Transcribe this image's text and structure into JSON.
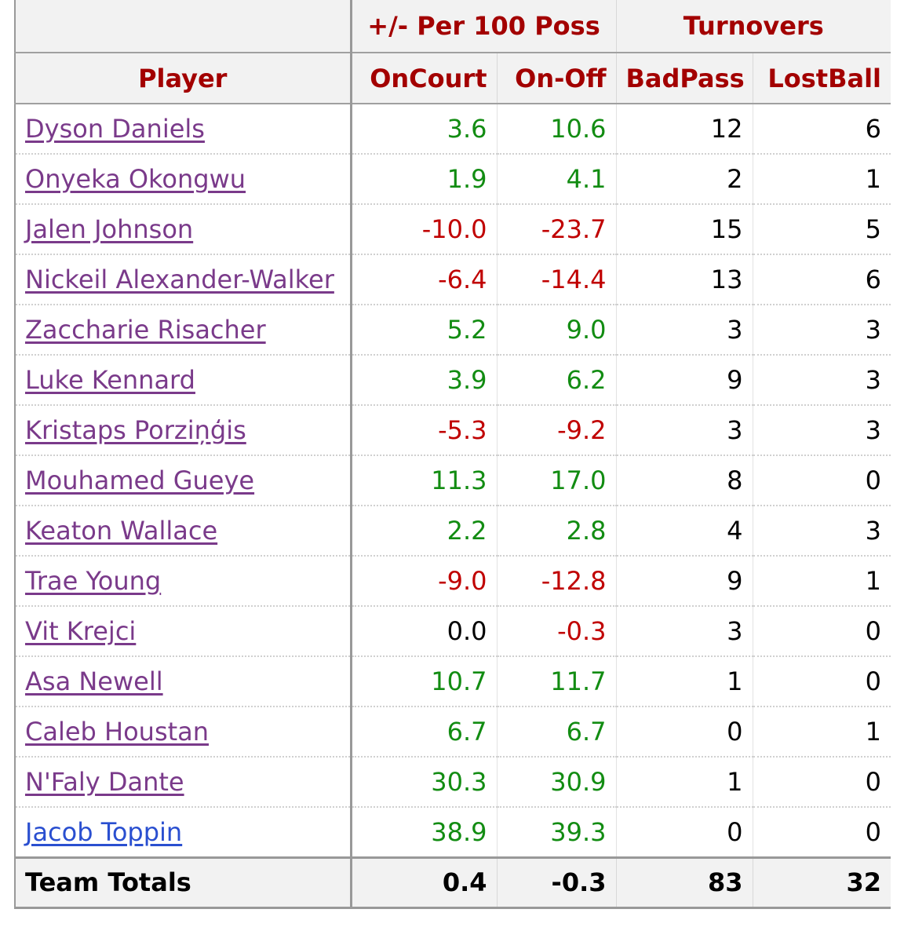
{
  "header": {
    "group_plus_minus": "+/- Per 100 Poss",
    "group_turnovers": "Turnovers",
    "col_player": "Player",
    "col_oncourt": "OnCourt",
    "col_onoff": "On-Off",
    "col_badpass": "BadPass",
    "col_lostball": "LostBall"
  },
  "rows": [
    {
      "player": "Dyson Daniels",
      "oncourt": "3.6",
      "onoff": "10.6",
      "badpass": "12",
      "lostball": "6"
    },
    {
      "player": "Onyeka Okongwu",
      "oncourt": "1.9",
      "onoff": "4.1",
      "badpass": "2",
      "lostball": "1"
    },
    {
      "player": "Jalen Johnson",
      "oncourt": "-10.0",
      "onoff": "-23.7",
      "badpass": "15",
      "lostball": "5"
    },
    {
      "player": "Nickeil Alexander-Walker",
      "oncourt": "-6.4",
      "onoff": "-14.4",
      "badpass": "13",
      "lostball": "6"
    },
    {
      "player": "Zaccharie Risacher",
      "oncourt": "5.2",
      "onoff": "9.0",
      "badpass": "3",
      "lostball": "3"
    },
    {
      "player": "Luke Kennard",
      "oncourt": "3.9",
      "onoff": "6.2",
      "badpass": "9",
      "lostball": "3"
    },
    {
      "player": "Kristaps Porziņģis",
      "oncourt": "-5.3",
      "onoff": "-9.2",
      "badpass": "3",
      "lostball": "3"
    },
    {
      "player": "Mouhamed Gueye",
      "oncourt": "11.3",
      "onoff": "17.0",
      "badpass": "8",
      "lostball": "0"
    },
    {
      "player": "Keaton Wallace",
      "oncourt": "2.2",
      "onoff": "2.8",
      "badpass": "4",
      "lostball": "3"
    },
    {
      "player": "Trae Young",
      "oncourt": "-9.0",
      "onoff": "-12.8",
      "badpass": "9",
      "lostball": "1"
    },
    {
      "player": "Vit Krejci",
      "oncourt": "0.0",
      "onoff": "-0.3",
      "badpass": "3",
      "lostball": "0"
    },
    {
      "player": "Asa Newell",
      "oncourt": "10.7",
      "onoff": "11.7",
      "badpass": "1",
      "lostball": "0"
    },
    {
      "player": "Caleb Houstan",
      "oncourt": "6.7",
      "onoff": "6.7",
      "badpass": "0",
      "lostball": "1"
    },
    {
      "player": "N'Faly Dante",
      "oncourt": "30.3",
      "onoff": "30.9",
      "badpass": "1",
      "lostball": "0"
    },
    {
      "player": "Jacob Toppin",
      "oncourt": "38.9",
      "onoff": "39.3",
      "badpass": "0",
      "lostball": "0"
    }
  ],
  "totals": {
    "label": "Team Totals",
    "oncourt": "0.4",
    "onoff": "-0.3",
    "badpass": "83",
    "lostball": "32"
  },
  "colors": {
    "header_text": "#a30000",
    "positive": "#128c12",
    "negative": "#c00000",
    "player_link_visited": "#7a3a8a",
    "player_link_unvisited": "#2a4fd0"
  }
}
